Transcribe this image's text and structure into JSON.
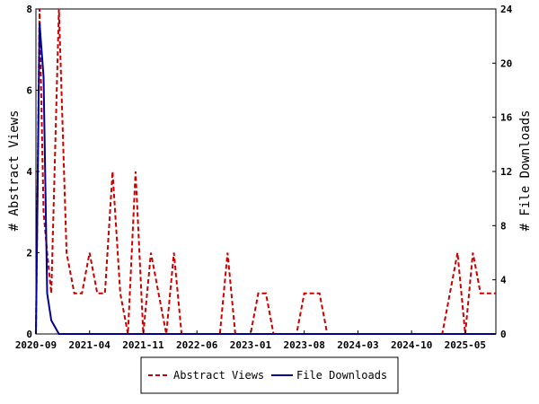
{
  "chart_data": {
    "type": "line",
    "title": "",
    "xlabel": "",
    "ylabel_left": "# Abstract Views",
    "ylabel_right": "# File Downloads",
    "x_ticks": [
      "2020-09",
      "2021-04",
      "2021-11",
      "2022-06",
      "2023-01",
      "2023-08",
      "2024-03",
      "2024-10",
      "2025-05"
    ],
    "xlim": [
      "2020-09",
      "2025-09"
    ],
    "ylim_left": [
      0,
      8
    ],
    "ylim_right": [
      0,
      24
    ],
    "y_ticks_left": [
      "0",
      "2",
      "4",
      "6",
      "8"
    ],
    "y_ticks_right": [
      "0",
      "4",
      "8",
      "12",
      "16",
      "20",
      "24"
    ],
    "grid": false,
    "legend_position": "bottom",
    "series": [
      {
        "name": "Abstract Views",
        "axis": "left",
        "color": "#cc0000",
        "style": "dashed",
        "x": [
          "2020-09",
          "2020-09",
          "2020-10",
          "2020-10",
          "2020-11",
          "2020-12",
          "2021-01",
          "2021-02",
          "2021-03",
          "2021-04",
          "2021-05",
          "2021-06",
          "2021-07",
          "2021-08",
          "2021-09",
          "2021-10",
          "2021-11",
          "2021-12",
          "2022-01",
          "2022-02",
          "2022-03",
          "2022-04",
          "2022-05",
          "2022-06",
          "2022-07",
          "2022-08",
          "2022-09",
          "2022-10",
          "2022-11",
          "2022-12",
          "2023-01",
          "2023-02",
          "2023-03",
          "2023-04",
          "2023-05",
          "2023-06",
          "2023-07",
          "2023-08",
          "2023-09",
          "2023-10",
          "2023-11",
          "2023-12",
          "2024-01",
          "2024-02",
          "2024-03",
          "2024-04",
          "2024-05",
          "2024-06",
          "2024-07",
          "2024-08",
          "2024-09",
          "2024-10",
          "2024-11",
          "2024-12",
          "2025-01",
          "2025-02",
          "2025-03",
          "2025-04",
          "2025-05",
          "2025-06",
          "2025-07",
          "2025-08",
          "2025-09"
        ],
        "values": [
          0,
          8,
          3,
          2,
          1,
          8,
          2,
          1,
          1,
          2,
          1,
          1,
          4,
          1,
          0,
          4,
          0,
          2,
          1,
          0,
          2,
          0,
          0,
          0,
          0,
          0,
          0,
          2,
          0,
          0,
          0,
          1,
          1,
          0,
          0,
          0,
          0,
          1,
          1,
          1,
          0,
          0,
          0,
          0,
          0,
          0,
          0,
          0,
          0,
          0,
          0,
          0,
          0,
          0,
          0,
          0,
          1,
          2,
          0,
          2,
          1,
          1,
          1
        ]
      },
      {
        "name": "File Downloads",
        "axis": "right",
        "color": "#000099",
        "style": "solid",
        "x": [
          "2020-09",
          "2020-09",
          "2020-10",
          "2020-10",
          "2020-11",
          "2020-12",
          "2021-01",
          "2021-04",
          "2022-06",
          "2023-01",
          "2023-08",
          "2024-03",
          "2024-10",
          "2025-05",
          "2025-09"
        ],
        "values": [
          0,
          23,
          19,
          3,
          1,
          0,
          0,
          0,
          0,
          0,
          0,
          0,
          0,
          0,
          0
        ]
      }
    ]
  }
}
